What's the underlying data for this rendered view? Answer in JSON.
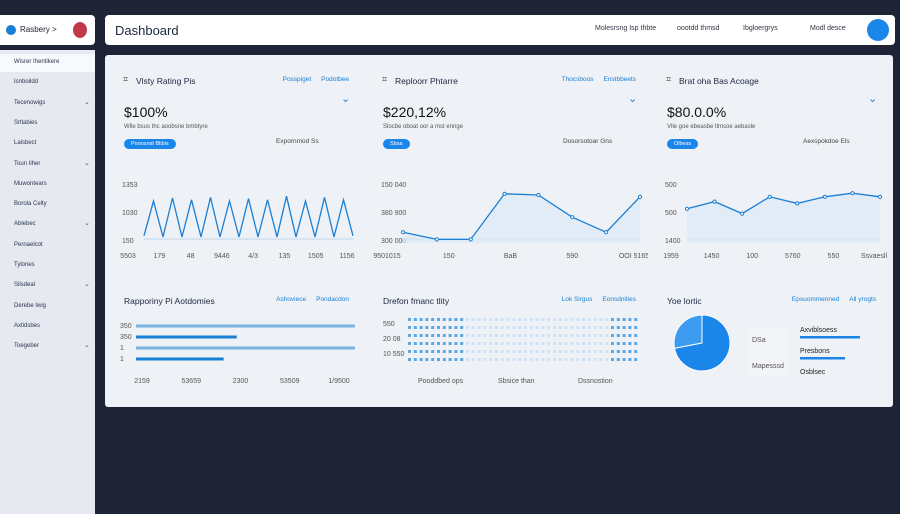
{
  "logo": "Rasbery >",
  "nav": [
    "Wisrer Ihentikere",
    "Isnboildd",
    "Tecenowigs",
    "Srtlabies",
    "Lalsbect",
    "Toun Iiher",
    "Muwontears",
    "Borola Celty",
    "Ablebec",
    "Pernaelcot",
    "Tylones",
    "Silsdeal",
    "Derebe Iwig",
    "Axtidsbes",
    "Toegeber"
  ],
  "header": {
    "title": "Dashboard",
    "links": [
      "Molesrsng Isp thbte",
      "oootdd thmsd",
      "Ibgloergrys",
      "Modl desce"
    ]
  },
  "cards": [
    {
      "title": "Vlsty Rating Pis",
      "tabs": [
        "Posspiget",
        "Podotbee"
      ],
      "value": "$100%",
      "subtitle": "Wlle bsus thc aoobsne bmbtyre",
      "pill": "Pooosnst Blibis",
      "note": "Expornmod Ss",
      "chart": {
        "type": "line",
        "color": "#1a7fd4",
        "ylim": [
          0,
          100
        ],
        "values": [
          12,
          70,
          10,
          75,
          10,
          72,
          10,
          76,
          10,
          70,
          10,
          74,
          10,
          72,
          10,
          78,
          10,
          70,
          10,
          76,
          10,
          72,
          12
        ],
        "y_labels": [
          "1353",
          "1030",
          "150"
        ],
        "x_labels": [
          "5503",
          "179",
          "48",
          "9446",
          "4/3",
          "135",
          "1505",
          "1156"
        ]
      }
    },
    {
      "title": "Reploorr Phtarre",
      "tabs": [
        "Thocsboos",
        "Enstbbeets"
      ],
      "value": "$220,12%",
      "subtitle": "Slocbe oboat oor a mst ennge",
      "pill": "Sbsa",
      "note": "Dosorsotoar Gns",
      "chart": {
        "type": "line",
        "color": "#1a7fd4",
        "ylim": [
          0,
          100
        ],
        "values": [
          18,
          6,
          6,
          82,
          80,
          43,
          18,
          77
        ],
        "y_labels": [
          "150 040",
          "380 900",
          "300 000"
        ],
        "x_labels": [
          "9501015",
          "150",
          "BaB",
          "590",
          "OOI 5165"
        ]
      }
    },
    {
      "title": "Brat oha Bas Acoage",
      "tabs": [],
      "value": "$80.0.0%",
      "subtitle": "Vlle goe ebeasbe tlmsoe aebasle",
      "pill": "Olbess",
      "note": "Aexspokdoe Els",
      "chart": {
        "type": "line",
        "color": "#1a7fd4",
        "ylim": [
          0,
          100
        ],
        "values": [
          57,
          69,
          49,
          77,
          66,
          77,
          83,
          77
        ],
        "y_labels": [
          "500",
          "500",
          "1400"
        ],
        "x_labels": [
          "1959",
          "1450",
          "100",
          "5760",
          "550",
          "Ssvaesll"
        ]
      }
    }
  ],
  "bottom": [
    {
      "title": "Rapporiny Pi Aotdomies",
      "tabs": [
        "Ashoviece",
        "Pondacdon"
      ],
      "chart": {
        "type": "hbar",
        "color": "#1a7fd4",
        "xlim": [
          0,
          100
        ],
        "values": [
          100,
          46,
          100,
          40
        ],
        "y_labels": [
          "350",
          "350",
          "1",
          "1"
        ],
        "x_labels": [
          "2159",
          "53659",
          "2300",
          "53509",
          "1/9500"
        ]
      }
    },
    {
      "title": "Drefon fmanc tlity",
      "tabs": [
        "Lok Sirgus",
        "Eonsdnities"
      ],
      "y_labels": [
        "550",
        "20 08",
        "10 550"
      ],
      "footer": [
        "Pooddbed ops",
        "Sbsice than",
        "Dssnostion"
      ]
    },
    {
      "title": "Yoe lortic",
      "tabs": [
        "Epsuommenned",
        "All yrogts"
      ],
      "chart": {
        "type": "pie",
        "values": [
          72,
          28
        ],
        "colors": [
          "#1a86ea",
          "#3d9cf0"
        ]
      },
      "legend": [
        "Axviblsoess",
        "Presbons",
        "Osblsec"
      ],
      "box": [
        "DSa",
        "Mapesssd"
      ]
    }
  ]
}
